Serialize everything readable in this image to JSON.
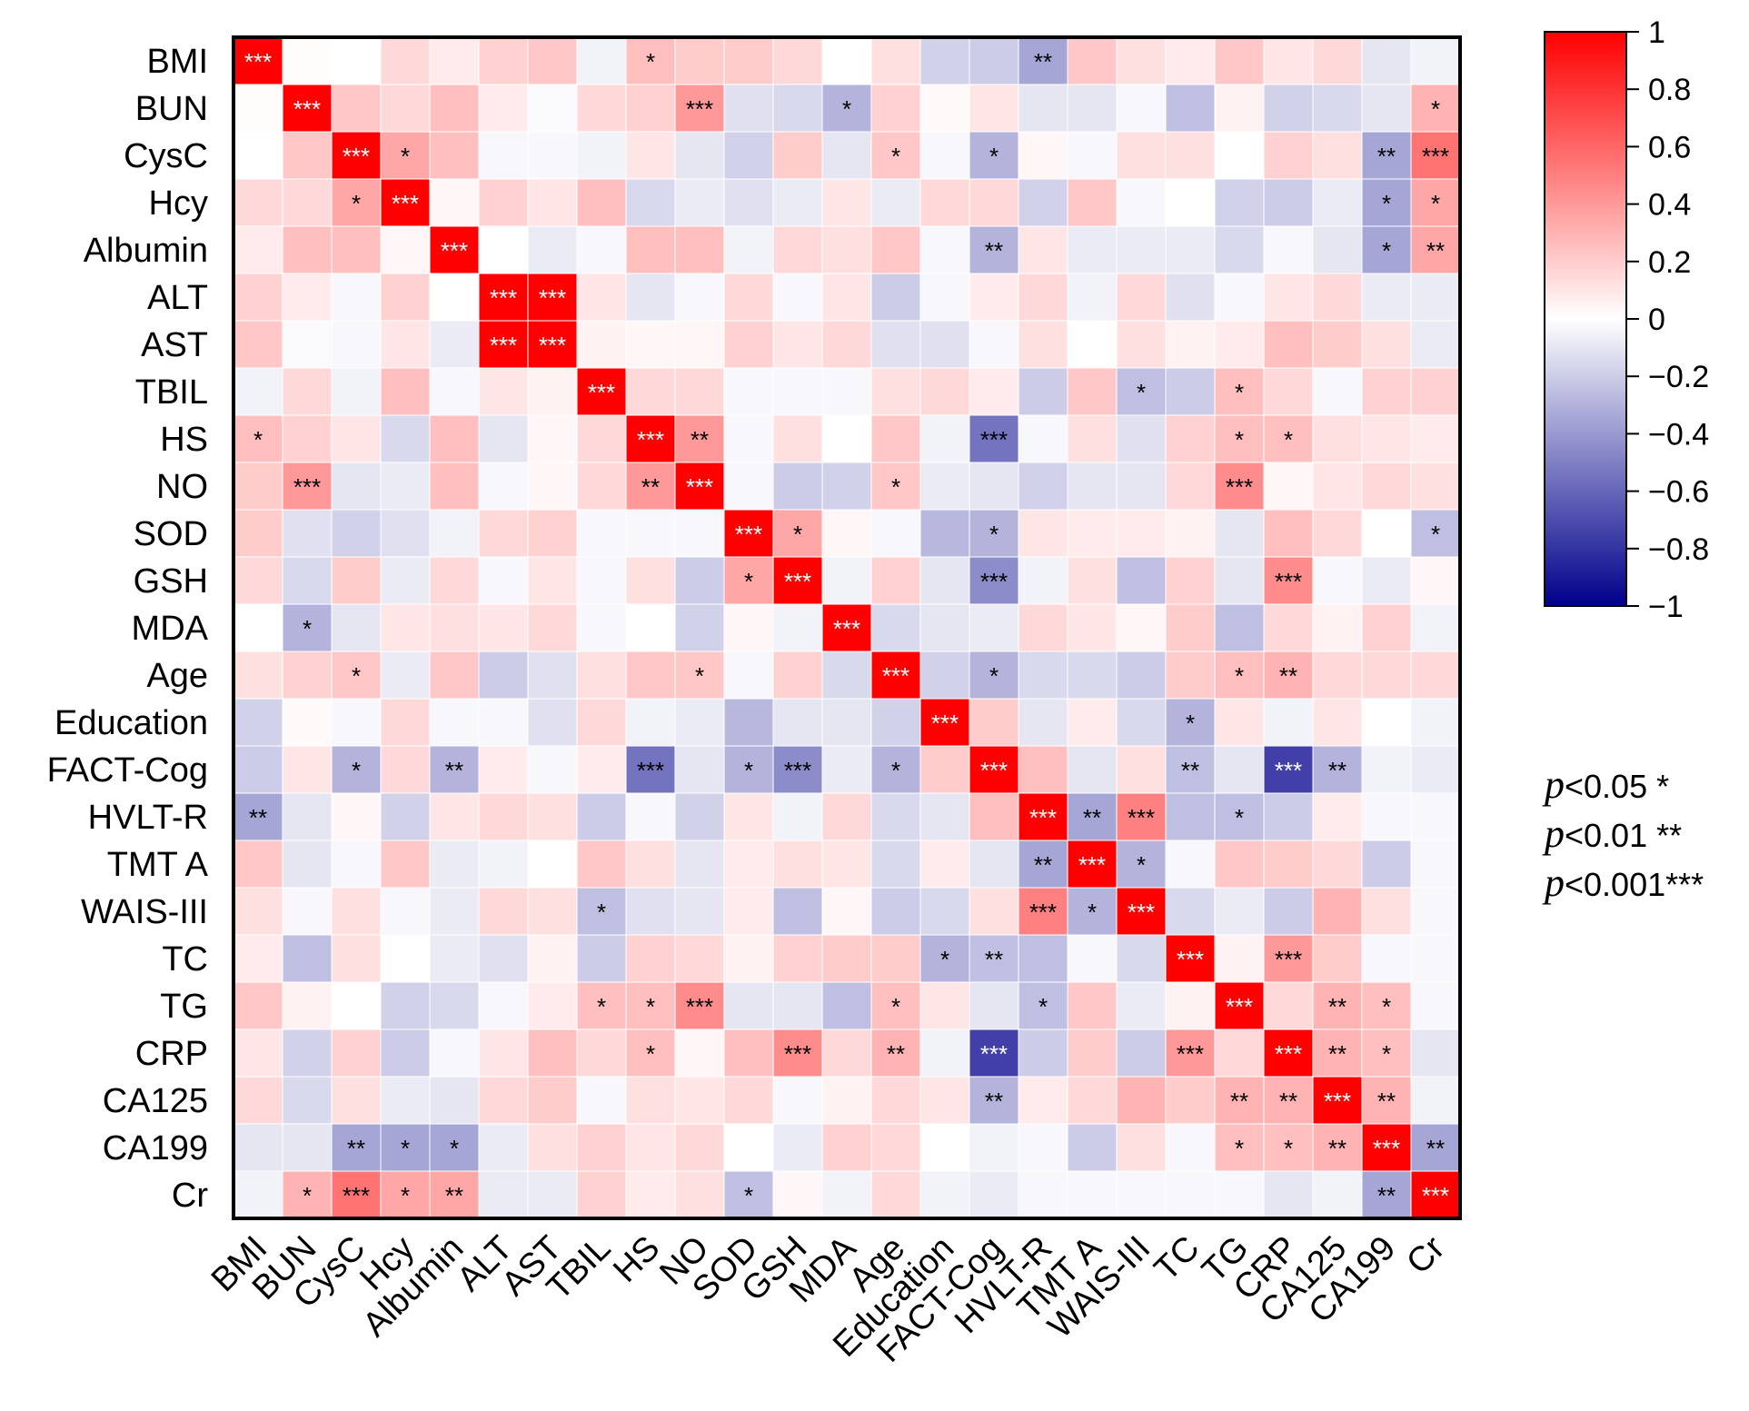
{
  "chart_data": {
    "type": "heatmap",
    "title": "",
    "variables": [
      "BMI",
      "BUN",
      "CysC",
      "Hcy",
      "Albumin",
      "ALT",
      "AST",
      "TBIL",
      "HS",
      "NO",
      "SOD",
      "GSH",
      "MDA",
      "Age",
      "Education",
      "FACT-Cog",
      "HVLT-R",
      "TMT A",
      "WAIS-III",
      "TC",
      "TG",
      "CRP",
      "CA125",
      "CA199",
      "Cr"
    ],
    "values": [
      [
        1.0,
        0.01,
        0.0,
        0.15,
        0.08,
        0.18,
        0.22,
        -0.05,
        0.25,
        0.2,
        0.2,
        0.15,
        0.0,
        0.12,
        -0.18,
        -0.2,
        -0.35,
        0.22,
        0.12,
        0.08,
        0.22,
        0.1,
        0.15,
        -0.1,
        -0.05
      ],
      [
        0.01,
        1.0,
        0.22,
        0.15,
        0.25,
        0.08,
        -0.02,
        0.15,
        0.18,
        0.4,
        -0.12,
        -0.15,
        -0.3,
        0.18,
        0.02,
        0.1,
        -0.1,
        -0.1,
        -0.03,
        -0.25,
        0.05,
        -0.18,
        -0.15,
        -0.1,
        0.3
      ],
      [
        0.0,
        0.22,
        1.0,
        0.35,
        0.25,
        -0.03,
        -0.03,
        -0.05,
        0.1,
        -0.1,
        -0.18,
        0.2,
        -0.1,
        0.22,
        -0.03,
        -0.3,
        0.03,
        -0.03,
        0.12,
        0.12,
        0.0,
        0.18,
        0.12,
        -0.35,
        0.55
      ],
      [
        0.15,
        0.15,
        0.35,
        1.0,
        0.03,
        0.18,
        0.1,
        0.25,
        -0.15,
        -0.08,
        -0.12,
        -0.08,
        0.1,
        -0.08,
        0.15,
        0.15,
        -0.18,
        0.22,
        -0.03,
        0.0,
        -0.18,
        -0.2,
        -0.08,
        -0.35,
        0.35
      ],
      [
        0.08,
        0.25,
        0.25,
        0.03,
        1.0,
        0.0,
        -0.08,
        -0.03,
        0.25,
        0.25,
        -0.05,
        0.15,
        0.12,
        0.22,
        -0.03,
        -0.3,
        0.1,
        -0.08,
        -0.08,
        -0.08,
        -0.15,
        -0.03,
        -0.1,
        -0.35,
        0.35
      ],
      [
        0.18,
        0.08,
        -0.03,
        0.18,
        0.0,
        1.0,
        1.0,
        0.1,
        -0.1,
        -0.03,
        0.15,
        -0.03,
        0.1,
        -0.2,
        -0.03,
        0.08,
        0.15,
        -0.05,
        0.15,
        -0.12,
        -0.03,
        0.1,
        0.15,
        -0.08,
        -0.08
      ],
      [
        0.22,
        -0.02,
        -0.03,
        0.1,
        -0.08,
        1.0,
        1.0,
        0.05,
        0.03,
        0.03,
        0.18,
        0.1,
        0.15,
        -0.12,
        -0.12,
        -0.03,
        0.12,
        0.0,
        0.12,
        0.05,
        0.08,
        0.25,
        0.2,
        0.12,
        -0.08
      ],
      [
        -0.05,
        0.15,
        -0.05,
        0.25,
        -0.03,
        0.1,
        0.05,
        1.0,
        0.15,
        0.15,
        -0.03,
        -0.03,
        -0.03,
        0.12,
        0.15,
        0.08,
        -0.2,
        0.22,
        -0.25,
        -0.2,
        0.25,
        0.15,
        -0.03,
        0.18,
        0.18
      ],
      [
        0.25,
        0.18,
        0.1,
        -0.15,
        0.25,
        -0.1,
        0.03,
        0.15,
        1.0,
        0.4,
        -0.03,
        0.12,
        0.0,
        0.22,
        -0.05,
        -0.55,
        -0.03,
        0.12,
        -0.12,
        0.18,
        0.25,
        0.25,
        0.12,
        0.1,
        0.08
      ],
      [
        0.2,
        0.4,
        -0.1,
        -0.08,
        0.25,
        -0.03,
        0.03,
        0.15,
        0.4,
        1.0,
        -0.03,
        -0.2,
        -0.18,
        0.22,
        -0.08,
        -0.1,
        -0.18,
        -0.1,
        -0.1,
        0.15,
        0.45,
        0.03,
        0.1,
        0.15,
        0.12
      ],
      [
        0.2,
        -0.12,
        -0.18,
        -0.12,
        -0.05,
        0.15,
        0.18,
        -0.03,
        -0.03,
        -0.03,
        1.0,
        0.35,
        0.03,
        -0.03,
        -0.28,
        -0.3,
        0.1,
        0.08,
        0.08,
        0.05,
        -0.1,
        0.25,
        0.15,
        0.0,
        -0.25
      ],
      [
        0.15,
        -0.15,
        0.2,
        -0.08,
        0.15,
        -0.03,
        0.1,
        -0.03,
        0.12,
        -0.2,
        0.35,
        1.0,
        -0.05,
        0.18,
        -0.1,
        -0.45,
        -0.05,
        0.12,
        -0.25,
        0.18,
        -0.1,
        0.45,
        -0.03,
        -0.08,
        0.03
      ],
      [
        0.0,
        -0.3,
        -0.1,
        0.1,
        0.12,
        0.1,
        0.15,
        -0.03,
        0.0,
        -0.18,
        0.03,
        -0.05,
        1.0,
        -0.15,
        -0.1,
        -0.08,
        0.15,
        0.1,
        0.03,
        0.2,
        -0.25,
        0.15,
        0.05,
        0.18,
        -0.05
      ],
      [
        0.12,
        0.18,
        0.22,
        -0.08,
        0.22,
        -0.2,
        -0.12,
        0.12,
        0.22,
        0.22,
        -0.03,
        0.18,
        -0.15,
        1.0,
        -0.18,
        -0.3,
        -0.15,
        -0.15,
        -0.2,
        0.2,
        0.25,
        0.3,
        0.15,
        0.15,
        0.15
      ],
      [
        -0.18,
        0.02,
        -0.03,
        0.15,
        -0.03,
        -0.03,
        -0.12,
        0.15,
        -0.05,
        -0.08,
        -0.28,
        -0.1,
        -0.1,
        -0.18,
        1.0,
        0.2,
        -0.1,
        0.08,
        -0.15,
        -0.3,
        0.1,
        -0.05,
        0.1,
        0.0,
        -0.05
      ],
      [
        -0.2,
        0.1,
        -0.3,
        0.15,
        -0.3,
        0.08,
        -0.03,
        0.08,
        -0.55,
        -0.1,
        -0.3,
        -0.45,
        -0.08,
        -0.3,
        0.2,
        1.0,
        0.25,
        -0.1,
        0.12,
        -0.25,
        -0.1,
        -0.75,
        -0.3,
        -0.05,
        -0.08
      ],
      [
        -0.35,
        -0.1,
        0.03,
        -0.18,
        0.1,
        0.15,
        0.12,
        -0.2,
        -0.03,
        -0.18,
        0.1,
        -0.05,
        0.15,
        -0.15,
        -0.1,
        0.25,
        1.0,
        -0.35,
        0.5,
        -0.25,
        -0.25,
        -0.2,
        0.08,
        -0.03,
        -0.03
      ],
      [
        0.22,
        -0.1,
        -0.03,
        0.22,
        -0.08,
        -0.05,
        0.0,
        0.22,
        0.12,
        -0.1,
        0.08,
        0.12,
        0.1,
        -0.15,
        0.08,
        -0.1,
        -0.35,
        1.0,
        -0.3,
        -0.03,
        0.22,
        0.2,
        0.15,
        -0.2,
        -0.03
      ],
      [
        0.12,
        -0.03,
        0.12,
        -0.03,
        -0.08,
        0.15,
        0.12,
        -0.25,
        -0.12,
        -0.1,
        0.08,
        -0.25,
        0.03,
        -0.2,
        -0.15,
        0.12,
        0.5,
        -0.3,
        1.0,
        -0.15,
        -0.08,
        -0.2,
        0.3,
        0.12,
        -0.03
      ],
      [
        0.08,
        -0.25,
        0.12,
        0.0,
        -0.08,
        -0.12,
        0.05,
        -0.2,
        0.18,
        0.15,
        0.05,
        0.18,
        0.2,
        0.2,
        -0.3,
        -0.25,
        -0.25,
        -0.03,
        -0.15,
        1.0,
        0.05,
        0.4,
        0.2,
        -0.03,
        -0.03
      ],
      [
        0.22,
        0.05,
        0.0,
        -0.18,
        -0.15,
        -0.03,
        0.08,
        0.25,
        0.25,
        0.45,
        -0.1,
        -0.1,
        -0.25,
        0.25,
        0.1,
        -0.1,
        -0.25,
        0.22,
        -0.08,
        0.05,
        1.0,
        0.15,
        0.3,
        0.25,
        -0.03
      ],
      [
        0.1,
        -0.18,
        0.18,
        -0.2,
        -0.03,
        0.1,
        0.25,
        0.15,
        0.25,
        0.03,
        0.25,
        0.45,
        0.15,
        0.3,
        -0.05,
        -0.75,
        -0.2,
        0.2,
        -0.2,
        0.4,
        0.15,
        1.0,
        0.3,
        0.25,
        -0.1
      ],
      [
        0.15,
        -0.15,
        0.12,
        -0.08,
        -0.1,
        0.15,
        0.2,
        -0.03,
        0.12,
        0.1,
        0.15,
        -0.03,
        0.05,
        0.15,
        0.1,
        -0.3,
        0.08,
        0.15,
        0.3,
        0.2,
        0.3,
        0.3,
        1.0,
        0.3,
        -0.05
      ],
      [
        -0.1,
        -0.1,
        -0.35,
        -0.35,
        -0.35,
        -0.08,
        0.12,
        0.18,
        0.1,
        0.15,
        0.0,
        -0.08,
        0.18,
        0.15,
        0.0,
        -0.05,
        -0.03,
        -0.2,
        0.12,
        -0.03,
        0.25,
        0.25,
        0.3,
        1.0,
        -0.35
      ],
      [
        -0.05,
        0.3,
        0.55,
        0.35,
        0.35,
        -0.08,
        -0.08,
        0.18,
        0.08,
        0.12,
        -0.25,
        0.03,
        -0.05,
        0.15,
        -0.05,
        -0.08,
        -0.03,
        -0.03,
        -0.03,
        -0.03,
        -0.03,
        -0.1,
        -0.05,
        -0.35,
        1.0
      ]
    ],
    "significance": [
      [
        "***",
        "",
        "",
        "",
        "",
        "",
        "",
        "",
        "*",
        "",
        "",
        "",
        "",
        "",
        "",
        "",
        "**",
        "",
        "",
        "",
        "",
        "",
        "",
        "",
        ""
      ],
      [
        "",
        "***",
        "",
        "",
        "",
        "",
        "",
        "",
        "",
        "***",
        "",
        "",
        "*",
        "",
        "",
        "",
        "",
        "",
        "",
        "",
        "",
        "",
        "",
        "",
        "*"
      ],
      [
        "",
        "",
        "***",
        "*",
        "",
        "",
        "",
        "",
        "",
        "",
        "",
        "",
        "",
        "*",
        "",
        "*",
        "",
        "",
        "",
        "",
        "",
        "",
        "",
        "**",
        "***"
      ],
      [
        "",
        "",
        "*",
        "***",
        "",
        "",
        "",
        "",
        "",
        "",
        "",
        "",
        "",
        "",
        "",
        "",
        "",
        "",
        "",
        "",
        "",
        "",
        "",
        "*",
        "*"
      ],
      [
        "",
        "",
        "",
        "",
        "***",
        "",
        "",
        "",
        "",
        "",
        "",
        "",
        "",
        "",
        "",
        "**",
        "",
        "",
        "",
        "",
        "",
        "",
        "",
        "*",
        "**"
      ],
      [
        "",
        "",
        "",
        "",
        "",
        "***",
        "***",
        "",
        "",
        "",
        "",
        "",
        "",
        "",
        "",
        "",
        "",
        "",
        "",
        "",
        "",
        "",
        "",
        "",
        ""
      ],
      [
        "",
        "",
        "",
        "",
        "",
        "***",
        "***",
        "",
        "",
        "",
        "",
        "",
        "",
        "",
        "",
        "",
        "",
        "",
        "",
        "",
        "",
        "",
        "",
        "",
        ""
      ],
      [
        "",
        "",
        "",
        "",
        "",
        "",
        "",
        "***",
        "",
        "",
        "",
        "",
        "",
        "",
        "",
        "",
        "",
        "",
        "*",
        "",
        "*",
        "",
        "",
        "",
        ""
      ],
      [
        "*",
        "",
        "",
        "",
        "",
        "",
        "",
        "",
        "***",
        "**",
        "",
        "",
        "",
        "",
        "",
        "***",
        "",
        "",
        "",
        "",
        "*",
        "*",
        "",
        "",
        ""
      ],
      [
        "",
        "***",
        "",
        "",
        "",
        "",
        "",
        "",
        "**",
        "***",
        "",
        "",
        "",
        "*",
        "",
        "",
        "",
        "",
        "",
        "",
        "***",
        "",
        "",
        "",
        ""
      ],
      [
        "",
        "",
        "",
        "",
        "",
        "",
        "",
        "",
        "",
        "",
        "***",
        "*",
        "",
        "",
        "",
        "*",
        "",
        "",
        "",
        "",
        "",
        "",
        "",
        "",
        "*"
      ],
      [
        "",
        "",
        "",
        "",
        "",
        "",
        "",
        "",
        "",
        "",
        "*",
        "***",
        "",
        "",
        "",
        "***",
        "",
        "",
        "",
        "",
        "",
        "***",
        "",
        "",
        ""
      ],
      [
        "",
        "*",
        "",
        "",
        "",
        "",
        "",
        "",
        "",
        "",
        "",
        "",
        "***",
        "",
        "",
        "",
        "",
        "",
        "",
        "",
        "",
        "",
        "",
        "",
        ""
      ],
      [
        "",
        "",
        "*",
        "",
        "",
        "",
        "",
        "",
        "",
        "*",
        "",
        "",
        "",
        "***",
        "",
        "*",
        "",
        "",
        "",
        "",
        "*",
        "**",
        "",
        "",
        ""
      ],
      [
        "",
        "",
        "",
        "",
        "",
        "",
        "",
        "",
        "",
        "",
        "",
        "",
        "",
        "",
        "***",
        "",
        "",
        "",
        "",
        "*",
        "",
        "",
        "",
        "",
        ""
      ],
      [
        "",
        "",
        "*",
        "",
        "**",
        "",
        "",
        "",
        "***",
        "",
        "*",
        "***",
        "",
        "*",
        "",
        "***",
        "",
        "",
        "",
        "**",
        "",
        "***",
        "**",
        "",
        ""
      ],
      [
        "**",
        "",
        "",
        "",
        "",
        "",
        "",
        "",
        "",
        "",
        "",
        "",
        "",
        "",
        "",
        "",
        "***",
        "**",
        "***",
        "",
        "*",
        "",
        "",
        "",
        ""
      ],
      [
        "",
        "",
        "",
        "",
        "",
        "",
        "",
        "",
        "",
        "",
        "",
        "",
        "",
        "",
        "",
        "",
        "**",
        "***",
        "*",
        "",
        "",
        "",
        "",
        "",
        ""
      ],
      [
        "",
        "",
        "",
        "",
        "",
        "",
        "",
        "*",
        "",
        "",
        "",
        "",
        "",
        "",
        "",
        "",
        "***",
        "*",
        "***",
        "",
        "",
        "",
        "",
        "",
        ""
      ],
      [
        "",
        "",
        "",
        "",
        "",
        "",
        "",
        "",
        "",
        "",
        "",
        "",
        "",
        "",
        "*",
        "**",
        "",
        "",
        "",
        "***",
        "",
        "***",
        "",
        "",
        ""
      ],
      [
        "",
        "",
        "",
        "",
        "",
        "",
        "",
        "*",
        "*",
        "***",
        "",
        "",
        "",
        "*",
        "",
        "",
        "*",
        "",
        "",
        "",
        "***",
        "",
        "**",
        "*",
        ""
      ],
      [
        "",
        "",
        "",
        "",
        "",
        "",
        "",
        "",
        "*",
        "",
        "",
        "***",
        "",
        "**",
        "",
        "***",
        "",
        "",
        "",
        "***",
        "",
        "***",
        "**",
        "*",
        ""
      ],
      [
        "",
        "",
        "",
        "",
        "",
        "",
        "",
        "",
        "",
        "",
        "",
        "",
        "",
        "",
        "",
        "**",
        "",
        "",
        "",
        "",
        "**",
        "**",
        "***",
        "**",
        ""
      ],
      [
        "",
        "",
        "**",
        "*",
        "*",
        "",
        "",
        "",
        "",
        "",
        "",
        "",
        "",
        "",
        "",
        "",
        "",
        "",
        "",
        "",
        "*",
        "*",
        "**",
        "***",
        "**"
      ],
      [
        "",
        "*",
        "***",
        "*",
        "**",
        "",
        "",
        "",
        "",
        "",
        "*",
        "",
        "",
        "",
        "",
        "",
        "",
        "",
        "",
        "",
        "",
        "",
        "",
        "**",
        "***"
      ]
    ],
    "colorbar": {
      "range": [
        -1,
        1
      ],
      "ticks": [
        1,
        0.8,
        0.6,
        0.4,
        0.2,
        0,
        -0.2,
        -0.4,
        -0.6,
        -0.8,
        -1
      ],
      "tick_labels": [
        "1",
        "0.8",
        "0.6",
        "0.4",
        "0.2",
        "0",
        "−0.2",
        "−0.4",
        "−0.6",
        "−0.8",
        "−1"
      ],
      "color_low": "#00008b",
      "color_mid": "#ffffff",
      "color_high": "#ff0000"
    },
    "legend": [
      {
        "pvar": "p",
        "text": "<0.05 *"
      },
      {
        "pvar": "p",
        "text": "<0.01 **"
      },
      {
        "pvar": "p",
        "text": "<0.001***"
      }
    ]
  }
}
